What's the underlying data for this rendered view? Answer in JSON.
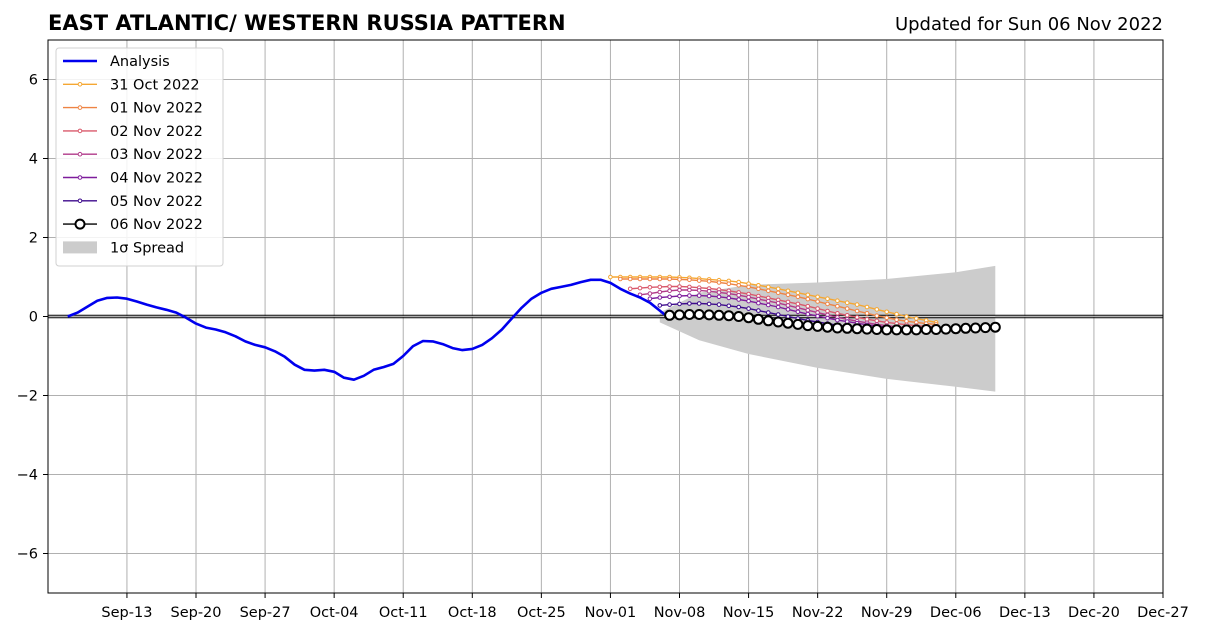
{
  "chart_data": {
    "type": "line",
    "title": "EAST ATLANTIC/ WESTERN RUSSIA PATTERN",
    "subtitle": "Updated for Sun 06 Nov 2022",
    "xlabel": "",
    "ylabel": "",
    "xlim": [
      "2022-09-05",
      "2022-12-27"
    ],
    "ylim": [
      -7,
      7
    ],
    "x_ticks": [
      {
        "date": "2022-09-13",
        "label": "Sep-13"
      },
      {
        "date": "2022-09-20",
        "label": "Sep-20"
      },
      {
        "date": "2022-09-27",
        "label": "Sep-27"
      },
      {
        "date": "2022-10-04",
        "label": "Oct-04"
      },
      {
        "date": "2022-10-11",
        "label": "Oct-11"
      },
      {
        "date": "2022-10-18",
        "label": "Oct-18"
      },
      {
        "date": "2022-10-25",
        "label": "Oct-25"
      },
      {
        "date": "2022-11-01",
        "label": "Nov-01"
      },
      {
        "date": "2022-11-08",
        "label": "Nov-08"
      },
      {
        "date": "2022-11-15",
        "label": "Nov-15"
      },
      {
        "date": "2022-11-22",
        "label": "Nov-22"
      },
      {
        "date": "2022-11-29",
        "label": "Nov-29"
      },
      {
        "date": "2022-12-06",
        "label": "Dec-06"
      },
      {
        "date": "2022-12-13",
        "label": "Dec-13"
      },
      {
        "date": "2022-12-20",
        "label": "Dec-20"
      },
      {
        "date": "2022-12-27",
        "label": "Dec-27"
      }
    ],
    "y_ticks": [
      {
        "value": -6,
        "label": "−6"
      },
      {
        "value": -4,
        "label": "−4"
      },
      {
        "value": -2,
        "label": "−2"
      },
      {
        "value": 0,
        "label": "0"
      },
      {
        "value": 2,
        "label": "2"
      },
      {
        "value": 4,
        "label": "4"
      },
      {
        "value": 6,
        "label": "6"
      }
    ],
    "grid": true,
    "legend": {
      "position": "top-left"
    },
    "analysis": {
      "name": "Analysis",
      "color": "#0000ee",
      "start": "2022-09-07",
      "values": [
        0.0,
        0.1,
        0.25,
        0.4,
        0.47,
        0.48,
        0.45,
        0.38,
        0.3,
        0.23,
        0.17,
        0.1,
        -0.03,
        -0.18,
        -0.28,
        -0.33,
        -0.4,
        -0.5,
        -0.63,
        -0.72,
        -0.78,
        -0.88,
        -1.02,
        -1.22,
        -1.35,
        -1.37,
        -1.35,
        -1.4,
        -1.55,
        -1.6,
        -1.5,
        -1.35,
        -1.28,
        -1.2,
        -1.0,
        -0.75,
        -0.62,
        -0.63,
        -0.7,
        -0.8,
        -0.85,
        -0.82,
        -0.72,
        -0.55,
        -0.33,
        -0.05,
        0.22,
        0.45,
        0.6,
        0.7,
        0.75,
        0.8,
        0.87,
        0.93,
        0.93,
        0.85,
        0.7,
        0.58,
        0.48,
        0.35,
        0.15,
        -0.05
      ]
    },
    "forecasts": [
      {
        "name": "31 Oct 2022",
        "color": "#f5a732",
        "start": "2022-11-01",
        "values": [
          1.0,
          1.0,
          1.0,
          1.0,
          1.0,
          1.0,
          1.0,
          0.99,
          0.98,
          0.96,
          0.94,
          0.92,
          0.9,
          0.87,
          0.83,
          0.79,
          0.75,
          0.7,
          0.65,
          0.6,
          0.55,
          0.5,
          0.45,
          0.4,
          0.35,
          0.3,
          0.24,
          0.18,
          0.12,
          0.06,
          0.0,
          -0.05,
          -0.1,
          -0.15
        ]
      },
      {
        "name": "01 Nov 2022",
        "color": "#ee8444",
        "start": "2022-11-02",
        "values": [
          0.95,
          0.95,
          0.95,
          0.95,
          0.95,
          0.95,
          0.94,
          0.93,
          0.91,
          0.89,
          0.86,
          0.83,
          0.79,
          0.75,
          0.7,
          0.65,
          0.6,
          0.55,
          0.5,
          0.44,
          0.38,
          0.32,
          0.26,
          0.2,
          0.14,
          0.08,
          0.02,
          -0.03,
          -0.08,
          -0.12,
          -0.15,
          -0.18,
          -0.2
        ]
      },
      {
        "name": "02 Nov 2022",
        "color": "#d9596b",
        "start": "2022-11-03",
        "values": [
          0.7,
          0.72,
          0.74,
          0.75,
          0.76,
          0.76,
          0.75,
          0.73,
          0.71,
          0.68,
          0.65,
          0.61,
          0.57,
          0.52,
          0.47,
          0.42,
          0.37,
          0.32,
          0.26,
          0.2,
          0.14,
          0.08,
          0.03,
          -0.02,
          -0.07,
          -0.11,
          -0.15,
          -0.18,
          -0.21,
          -0.23,
          -0.25,
          -0.26
        ]
      },
      {
        "name": "03 Nov 2022",
        "color": "#b13a8a",
        "start": "2022-11-04",
        "values": [
          0.55,
          0.58,
          0.62,
          0.65,
          0.67,
          0.67,
          0.66,
          0.64,
          0.61,
          0.58,
          0.54,
          0.49,
          0.44,
          0.39,
          0.34,
          0.28,
          0.22,
          0.16,
          0.1,
          0.04,
          -0.02,
          -0.07,
          -0.12,
          -0.16,
          -0.2,
          -0.23,
          -0.26,
          -0.28,
          -0.29,
          -0.3,
          -0.3
        ]
      },
      {
        "name": "04 Nov 2022",
        "color": "#7e1c9c",
        "start": "2022-11-05",
        "values": [
          0.45,
          0.48,
          0.5,
          0.52,
          0.53,
          0.53,
          0.52,
          0.5,
          0.47,
          0.43,
          0.39,
          0.34,
          0.29,
          0.24,
          0.18,
          0.12,
          0.06,
          0.01,
          -0.04,
          -0.09,
          -0.13,
          -0.17,
          -0.21,
          -0.24,
          -0.27,
          -0.29,
          -0.31,
          -0.32,
          -0.33,
          -0.33
        ]
      },
      {
        "name": "05 Nov 2022",
        "color": "#3d0a8c",
        "start": "2022-11-06",
        "values": [
          0.28,
          0.3,
          0.32,
          0.33,
          0.33,
          0.32,
          0.3,
          0.27,
          0.24,
          0.2,
          0.15,
          0.1,
          0.05,
          0.0,
          -0.05,
          -0.1,
          -0.14,
          -0.18,
          -0.22,
          -0.25,
          -0.28,
          -0.3,
          -0.32,
          -0.34,
          -0.35,
          -0.36,
          -0.36,
          -0.36,
          -0.35
        ]
      }
    ],
    "current": {
      "name": "06 Nov 2022",
      "color": "#000000",
      "start": "2022-11-07",
      "values": [
        0.03,
        0.04,
        0.05,
        0.05,
        0.04,
        0.03,
        0.02,
        0.0,
        -0.03,
        -0.07,
        -0.11,
        -0.14,
        -0.17,
        -0.2,
        -0.23,
        -0.25,
        -0.27,
        -0.29,
        -0.3,
        -0.31,
        -0.32,
        -0.33,
        -0.34,
        -0.34,
        -0.34,
        -0.34,
        -0.33,
        -0.33,
        -0.32,
        -0.31,
        -0.3,
        -0.29,
        -0.28,
        -0.27
      ]
    },
    "spread": {
      "name": "1σ Spread",
      "color": "#cccccc",
      "start": "2022-11-06",
      "end": "2022-12-10",
      "upper": [
        {
          "date": "2022-11-06",
          "value": 0.1
        },
        {
          "date": "2022-11-10",
          "value": 0.6
        },
        {
          "date": "2022-11-15",
          "value": 0.8
        },
        {
          "date": "2022-11-22",
          "value": 0.86
        },
        {
          "date": "2022-11-29",
          "value": 0.95
        },
        {
          "date": "2022-12-06",
          "value": 1.12
        },
        {
          "date": "2022-12-10",
          "value": 1.28
        }
      ],
      "lower": [
        {
          "date": "2022-11-06",
          "value": -0.15
        },
        {
          "date": "2022-11-10",
          "value": -0.6
        },
        {
          "date": "2022-11-15",
          "value": -0.95
        },
        {
          "date": "2022-11-22",
          "value": -1.3
        },
        {
          "date": "2022-11-29",
          "value": -1.58
        },
        {
          "date": "2022-12-06",
          "value": -1.78
        },
        {
          "date": "2022-12-10",
          "value": -1.9
        }
      ]
    }
  }
}
